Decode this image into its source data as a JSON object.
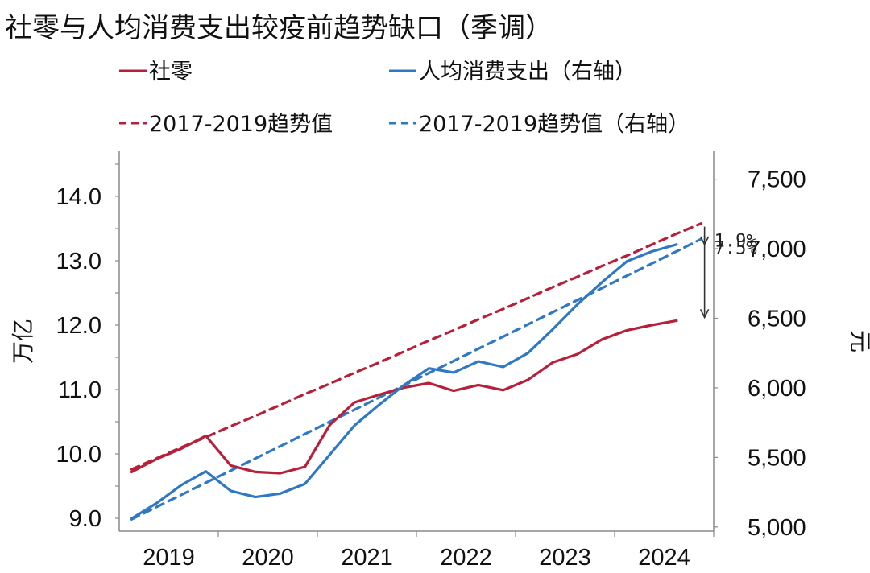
{
  "chart_data": {
    "type": "line",
    "title": "社零与人均消费支出较疫前趋势缺口（季调）",
    "x_tick_labels": [
      "2019",
      "2020",
      "2021",
      "2022",
      "2023",
      "2024"
    ],
    "left_axis": {
      "label": "万亿",
      "ylim": [
        8.8,
        14.7
      ],
      "ticks": [
        9.0,
        10.0,
        11.0,
        12.0,
        13.0,
        14.0
      ],
      "tick_labels": [
        "9.0",
        "10.0",
        "11.0",
        "12.0",
        "13.0",
        "14.0"
      ]
    },
    "right_axis": {
      "label": "元",
      "ylim": [
        4970,
        7700
      ],
      "ticks": [
        5000,
        5500,
        6000,
        6500,
        7000,
        7500
      ],
      "tick_labels": [
        "5,000",
        "5,500",
        "6,000",
        "6,500",
        "7,000",
        "7,500"
      ]
    },
    "quarters": [
      "2019Q1",
      "2019Q2",
      "2019Q3",
      "2019Q4",
      "2020Q1",
      "2020Q2",
      "2020Q3",
      "2020Q4",
      "2021Q1",
      "2021Q2",
      "2021Q3",
      "2021Q4",
      "2022Q1",
      "2022Q2",
      "2022Q3",
      "2022Q4",
      "2023Q1",
      "2023Q2",
      "2023Q3",
      "2023Q4",
      "2024Q1",
      "2024Q2",
      "2024Q3",
      "2024Q4"
    ],
    "series": [
      {
        "name": "社零",
        "axis": "left",
        "color": "#b81f3a",
        "style": "solid",
        "values": [
          9.72,
          9.92,
          10.08,
          10.28,
          9.82,
          9.72,
          9.7,
          9.8,
          10.45,
          10.8,
          10.92,
          11.03,
          11.1,
          10.98,
          11.07,
          10.99,
          11.15,
          11.42,
          11.55,
          11.78,
          11.92,
          12.0,
          12.07,
          null
        ]
      },
      {
        "name": "人均消费支出（右轴）",
        "axis": "right",
        "color": "#2f78c4",
        "style": "solid",
        "values": [
          5060,
          5170,
          5300,
          5400,
          5260,
          5215,
          5240,
          5310,
          5520,
          5730,
          5880,
          6020,
          6140,
          6110,
          6190,
          6150,
          6250,
          6420,
          6600,
          6760,
          6910,
          6980,
          7030,
          null
        ]
      },
      {
        "name": "2017-2019趋势值",
        "axis": "left",
        "color": "#b81f3a",
        "style": "dashed",
        "values": [
          9.76,
          9.93,
          10.1,
          10.26,
          10.43,
          10.59,
          10.76,
          10.93,
          11.09,
          11.26,
          11.42,
          11.59,
          11.76,
          11.92,
          12.09,
          12.25,
          12.42,
          12.59,
          12.75,
          12.92,
          13.08,
          13.25,
          13.42,
          13.58
        ]
      },
      {
        "name": "2017-2019趋势值（右轴）",
        "axis": "right",
        "color": "#2f78c4",
        "style": "dashed",
        "values": [
          5055,
          5143,
          5230,
          5318,
          5405,
          5493,
          5580,
          5668,
          5756,
          5843,
          5931,
          6018,
          6106,
          6193,
          6281,
          6368,
          6456,
          6543,
          6631,
          6718,
          6806,
          6893,
          6981,
          7070
        ]
      }
    ],
    "legend": [
      "社零",
      "人均消费支出（右轴）",
      "2017-2019趋势值",
      "2017-2019趋势值（右轴）"
    ],
    "legend_placement": "top",
    "annotations": [
      {
        "text": "1.9%",
        "series": "人均消费支出（右轴）"
      },
      {
        "text": "7.5%",
        "series": "社零"
      }
    ]
  }
}
